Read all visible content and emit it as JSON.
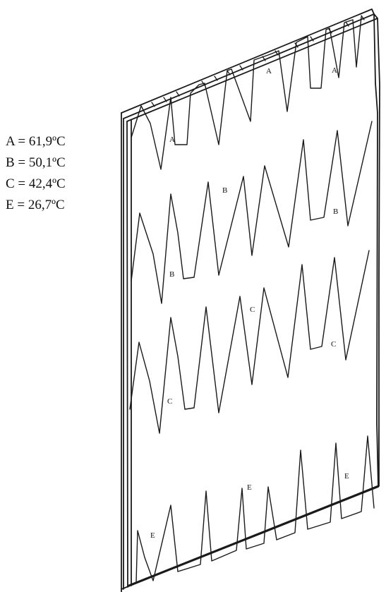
{
  "legend": [
    {
      "key": "A",
      "text": "A = 61,9ºC"
    },
    {
      "key": "B",
      "text": "B = 50,1ºC"
    },
    {
      "key": "C",
      "text": "C = 42,4ºC"
    },
    {
      "key": "E",
      "text": "E = 26,7ºC"
    }
  ],
  "diagram": {
    "labels": {
      "A": "A",
      "B": "B",
      "C": "C",
      "E": "E"
    }
  }
}
